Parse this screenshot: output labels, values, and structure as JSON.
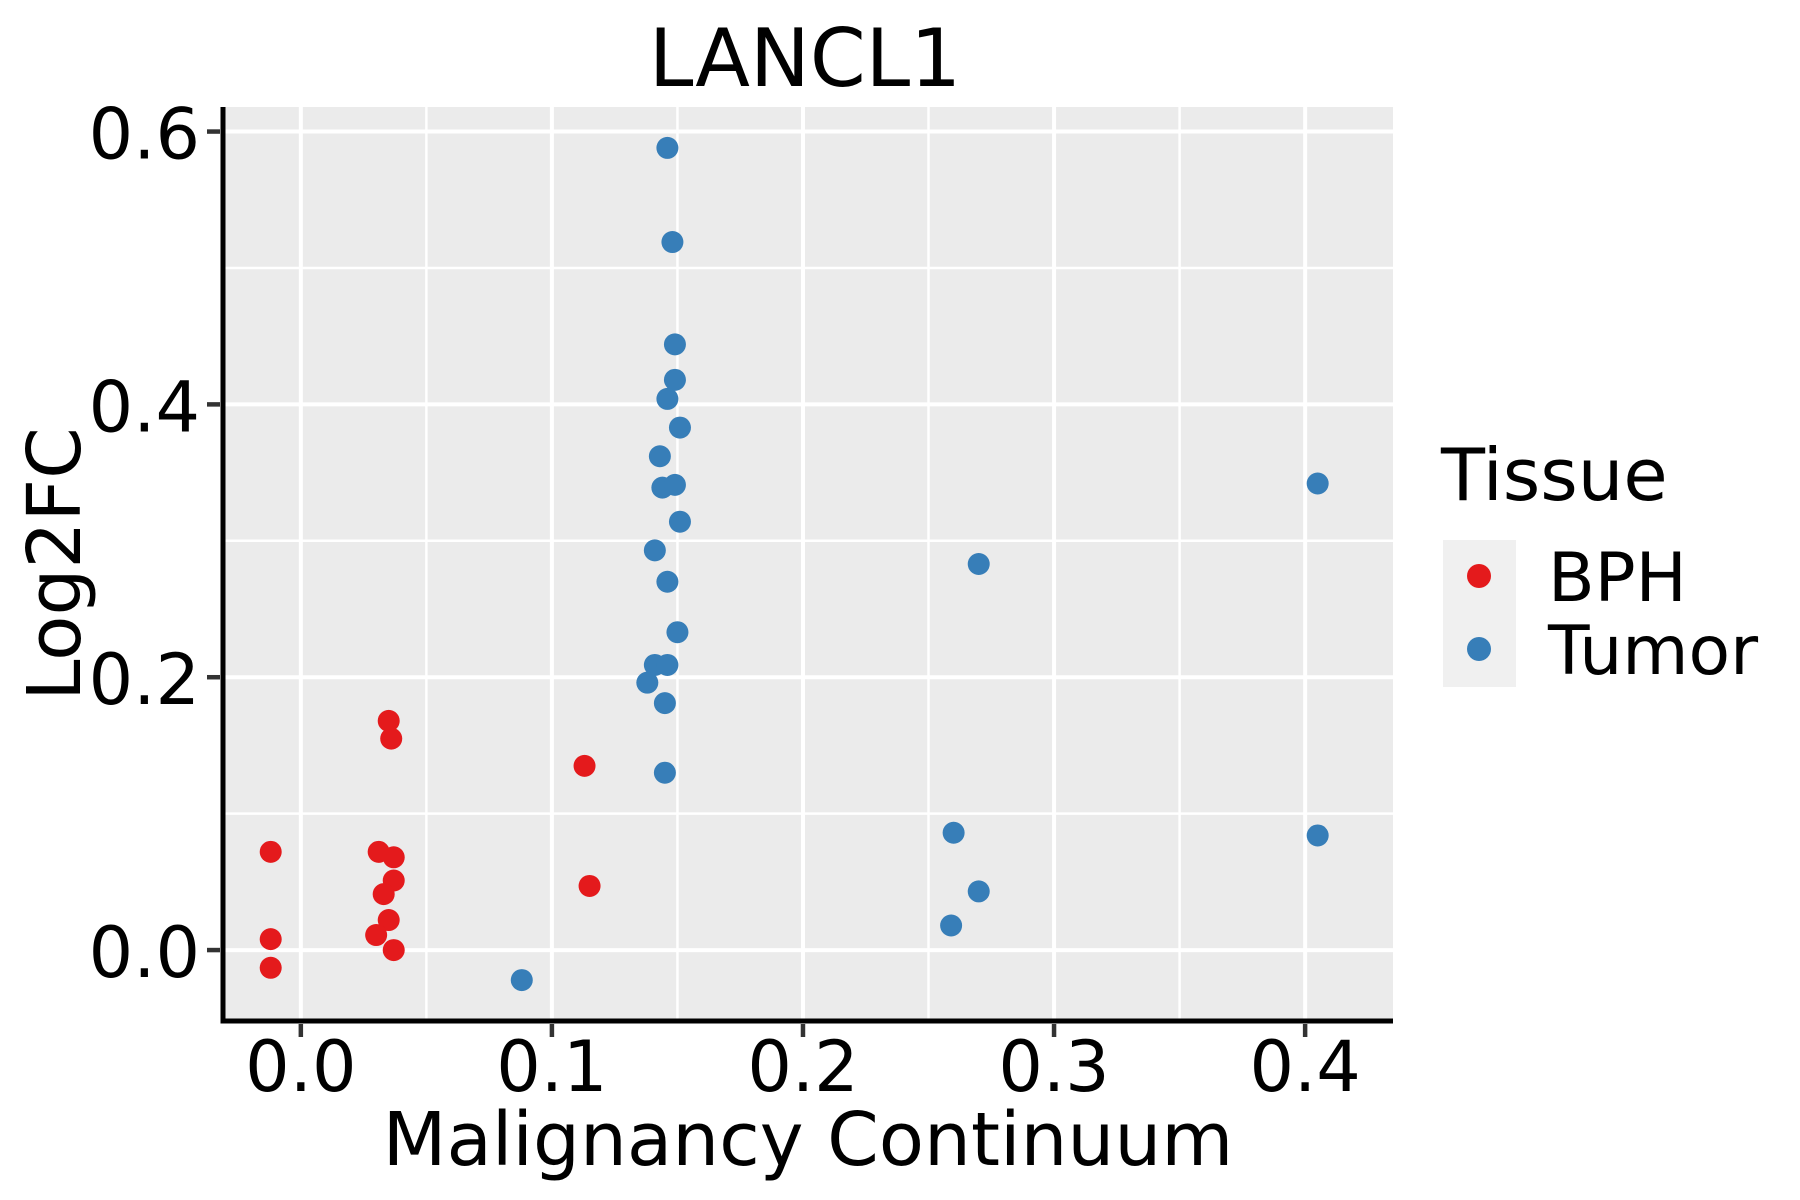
{
  "title": "LANCL1",
  "chart_data": {
    "type": "scatter",
    "title": "LANCL1",
    "xlabel": "Malignancy Continuum",
    "ylabel": "Log2FC",
    "xlim": [
      -0.031,
      0.435
    ],
    "ylim": [
      -0.052,
      0.618
    ],
    "x_ticks": {
      "values": [
        0.0,
        0.1,
        0.2,
        0.3,
        0.4
      ],
      "labels": [
        "0.0",
        "0.1",
        "0.2",
        "0.3",
        "0.4"
      ],
      "minor": [
        0.05,
        0.15,
        0.25,
        0.35
      ]
    },
    "y_ticks": {
      "values": [
        0.0,
        0.2,
        0.4,
        0.6
      ],
      "labels": [
        "0.0",
        "0.2",
        "0.4",
        "0.6"
      ],
      "minor": [
        0.1,
        0.3,
        0.5
      ]
    },
    "grid": "on",
    "legend_position": "right",
    "panel_bg": "#ebebeb",
    "grid_color": "#ffffff",
    "tick_color": "#333333",
    "spine_color": "#000000",
    "legend": {
      "title": "Tissue",
      "entries": [
        {
          "label": "BPH",
          "color": "#e41a1c"
        },
        {
          "label": "Tumor",
          "color": "#377eb8"
        }
      ]
    },
    "series": [
      {
        "name": "BPH",
        "color": "#e41a1c",
        "points": [
          [
            -0.012,
            0.072
          ],
          [
            -0.012,
            0.008
          ],
          [
            -0.012,
            -0.013
          ],
          [
            0.035,
            0.168
          ],
          [
            0.036,
            0.155
          ],
          [
            0.031,
            0.072
          ],
          [
            0.037,
            0.068
          ],
          [
            0.037,
            0.051
          ],
          [
            0.033,
            0.041
          ],
          [
            0.035,
            0.022
          ],
          [
            0.03,
            0.011
          ],
          [
            0.037,
            0.0
          ],
          [
            0.113,
            0.135
          ],
          [
            0.115,
            0.047
          ]
        ]
      },
      {
        "name": "Tumor",
        "color": "#377eb8",
        "points": [
          [
            0.146,
            0.588
          ],
          [
            0.148,
            0.519
          ],
          [
            0.149,
            0.444
          ],
          [
            0.149,
            0.418
          ],
          [
            0.146,
            0.404
          ],
          [
            0.151,
            0.383
          ],
          [
            0.143,
            0.362
          ],
          [
            0.144,
            0.339
          ],
          [
            0.149,
            0.341
          ],
          [
            0.151,
            0.314
          ],
          [
            0.141,
            0.293
          ],
          [
            0.146,
            0.27
          ],
          [
            0.15,
            0.233
          ],
          [
            0.141,
            0.209
          ],
          [
            0.146,
            0.209
          ],
          [
            0.138,
            0.196
          ],
          [
            0.145,
            0.181
          ],
          [
            0.145,
            0.13
          ],
          [
            0.088,
            -0.022
          ],
          [
            0.27,
            0.283
          ],
          [
            0.26,
            0.086
          ],
          [
            0.27,
            0.043
          ],
          [
            0.259,
            0.018
          ],
          [
            0.405,
            0.342
          ],
          [
            0.405,
            0.084
          ]
        ]
      }
    ]
  }
}
